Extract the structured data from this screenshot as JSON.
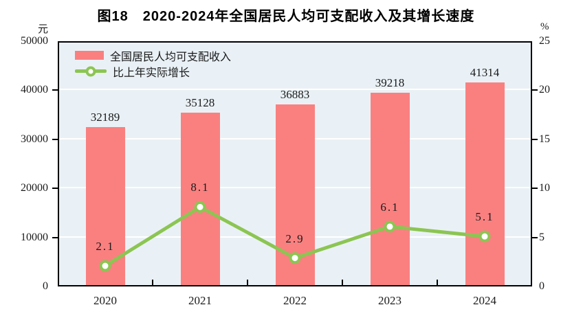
{
  "title": "图18　2020-2024年全国居民人均可支配收入及其增长速度",
  "left_axis": {
    "unit": "元",
    "ticks": [
      "0",
      "10000",
      "20000",
      "30000",
      "40000",
      "50000"
    ]
  },
  "right_axis": {
    "unit": "%",
    "ticks": [
      "0",
      "5",
      "10",
      "15",
      "20",
      "25"
    ]
  },
  "legend": [
    {
      "label": "全国居民人均可支配收入",
      "type": "bar"
    },
    {
      "label": "比上年实际增长",
      "type": "line"
    }
  ],
  "colors": {
    "bar": "#FA8080",
    "line": "#8CC552",
    "marker_fill": "#FFFFFF",
    "plot_bg": "#E9F1F6",
    "grid": "#FFFFFF",
    "axis": "#000000",
    "text": "#1A1A1A"
  },
  "chart_data": {
    "type": "bar",
    "combo": "bar+line",
    "title": "图18　2020-2024年全国居民人均可支配收入及其增长速度",
    "categories": [
      "2020",
      "2021",
      "2022",
      "2023",
      "2024"
    ],
    "series": [
      {
        "name": "全国居民人均可支配收入",
        "type": "bar",
        "axis": "left",
        "unit": "元",
        "values": [
          32189,
          35128,
          36883,
          39218,
          41314
        ]
      },
      {
        "name": "比上年实际增长",
        "type": "line",
        "axis": "right",
        "unit": "%",
        "values": [
          2.1,
          8.1,
          2.9,
          6.1,
          5.1
        ]
      }
    ],
    "ylabel_left": "元",
    "ylabel_right": "%",
    "ylim_left": [
      0,
      50000
    ],
    "ylim_right": [
      0,
      25
    ],
    "grid": true,
    "legend_position": "top-left"
  }
}
